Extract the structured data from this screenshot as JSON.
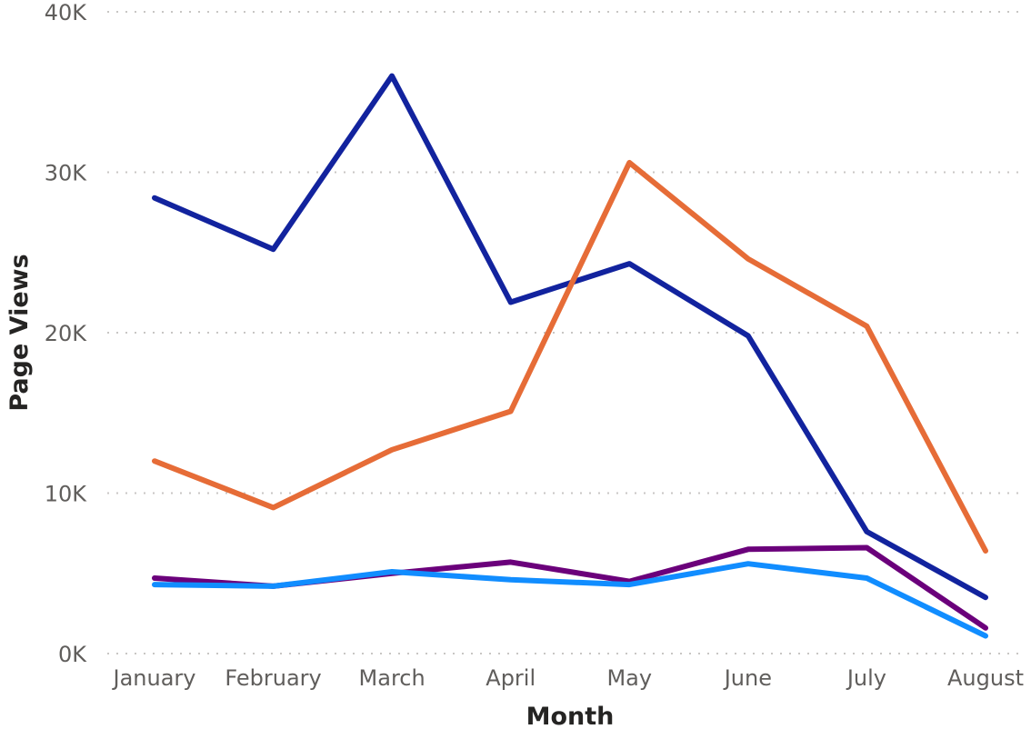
{
  "chart_data": {
    "type": "line",
    "xlabel": "Month",
    "ylabel": "Page Views",
    "categories": [
      "January",
      "February",
      "March",
      "April",
      "May",
      "June",
      "July",
      "August"
    ],
    "ylim": [
      0,
      40000
    ],
    "yticks": [
      0,
      10000,
      20000,
      30000,
      40000
    ],
    "ytick_labels": [
      "0K",
      "10K",
      "20K",
      "30K",
      "40K"
    ],
    "grid": true,
    "legend": "none",
    "series": [
      {
        "color": "#12239e",
        "values": [
          28400,
          25200,
          36000,
          21900,
          24300,
          19800,
          7600,
          3500
        ]
      },
      {
        "color": "#e66c37",
        "values": [
          12000,
          9100,
          12700,
          15100,
          30600,
          24600,
          20400,
          6400
        ]
      },
      {
        "color": "#6b007b",
        "values": [
          4700,
          4200,
          5000,
          5700,
          4500,
          6500,
          6600,
          1600
        ]
      },
      {
        "color": "#118dff",
        "values": [
          4300,
          4200,
          5100,
          4600,
          4300,
          5600,
          4700,
          1100
        ]
      }
    ]
  }
}
